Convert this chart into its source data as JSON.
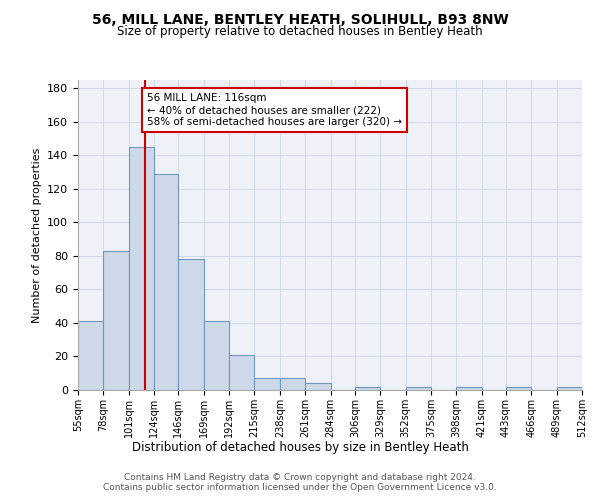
{
  "title": "56, MILL LANE, BENTLEY HEATH, SOLIHULL, B93 8NW",
  "subtitle": "Size of property relative to detached houses in Bentley Heath",
  "xlabel": "Distribution of detached houses by size in Bentley Heath",
  "ylabel": "Number of detached properties",
  "bin_labels": [
    "55sqm",
    "78sqm",
    "101sqm",
    "124sqm",
    "146sqm",
    "169sqm",
    "192sqm",
    "215sqm",
    "238sqm",
    "261sqm",
    "284sqm",
    "306sqm",
    "329sqm",
    "352sqm",
    "375sqm",
    "398sqm",
    "421sqm",
    "443sqm",
    "466sqm",
    "489sqm",
    "512sqm"
  ],
  "bar_heights": [
    41,
    83,
    145,
    129,
    78,
    41,
    21,
    7,
    7,
    4,
    0,
    2,
    0,
    2,
    0,
    2,
    0,
    2,
    0,
    2
  ],
  "bar_color": "#cdd9e8",
  "bar_edge_color": "#7098bf",
  "property_line_x": 116,
  "annotation_text": "56 MILL LANE: 116sqm\n← 40% of detached houses are smaller (222)\n58% of semi-detached houses are larger (320) →",
  "annotation_box_color": "#ffffff",
  "annotation_border_color": "#cc0000",
  "red_line_color": "#cc0000",
  "grid_color": "#d0d8e8",
  "background_color": "#eef2f8",
  "footer_text": "Contains HM Land Registry data © Crown copyright and database right 2024.\nContains public sector information licensed under the Open Government Licence v3.0.",
  "ylim": [
    0,
    185
  ],
  "yticks": [
    0,
    20,
    40,
    60,
    80,
    100,
    120,
    140,
    160,
    180
  ]
}
